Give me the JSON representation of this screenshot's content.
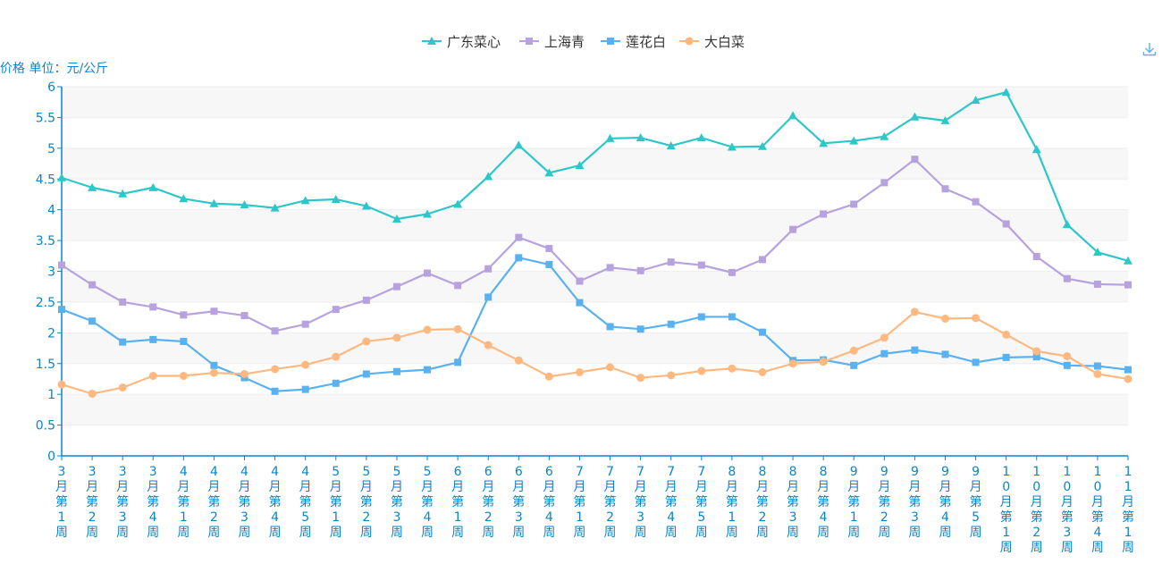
{
  "chart_data": {
    "type": "line",
    "ylabel": "价格 单位：元/公斤",
    "ylim": [
      0,
      6
    ],
    "yticks": [
      "0",
      "0.5",
      "1",
      "1.5",
      "2",
      "2.5",
      "3",
      "3.5",
      "4",
      "4.5",
      "5",
      "5.5",
      "6"
    ],
    "grid": true,
    "legend_position": "top-center",
    "categories": [
      "3月第1周",
      "3月第2周",
      "3月第3周",
      "3月第4周",
      "4月第1周",
      "4月第2周",
      "4月第3周",
      "4月第4周",
      "4月第5周",
      "5月第1周",
      "5月第2周",
      "5月第3周",
      "5月第4周",
      "6月第1周",
      "6月第2周",
      "6月第3周",
      "6月第4周",
      "7月第1周",
      "7月第2周",
      "7月第3周",
      "7月第4周",
      "7月第5周",
      "8月第1周",
      "8月第2周",
      "8月第3周",
      "8月第4周",
      "9月第1周",
      "9月第2周",
      "9月第3周",
      "9月第4周",
      "9月第5周",
      "10月第1周",
      "10月第2周",
      "10月第3周",
      "10月第4周",
      "11月第1周"
    ],
    "series": [
      {
        "name": "广东菜心",
        "color": "#2ec7c9",
        "marker": "triangle",
        "values": [
          4.52,
          4.36,
          4.26,
          4.36,
          4.18,
          4.1,
          4.08,
          4.03,
          4.15,
          4.17,
          4.06,
          3.85,
          3.93,
          4.09,
          4.54,
          5.05,
          4.6,
          4.72,
          5.16,
          5.17,
          5.04,
          5.17,
          5.02,
          5.03,
          5.53,
          5.08,
          5.12,
          5.19,
          5.51,
          5.45,
          5.78,
          5.91,
          4.98,
          3.76,
          3.31,
          3.17
        ]
      },
      {
        "name": "上海青",
        "color": "#b6a2de",
        "marker": "square",
        "values": [
          3.1,
          2.78,
          2.5,
          2.42,
          2.29,
          2.35,
          2.28,
          2.03,
          2.14,
          2.38,
          2.53,
          2.75,
          2.97,
          2.77,
          3.04,
          3.55,
          3.37,
          2.84,
          3.06,
          3.01,
          3.15,
          3.1,
          2.98,
          3.19,
          3.68,
          3.93,
          4.09,
          4.44,
          4.82,
          4.34,
          4.13,
          3.77,
          3.24,
          2.88,
          2.79,
          2.78
        ]
      },
      {
        "name": "莲花白",
        "color": "#5ab1ef",
        "marker": "square",
        "values": [
          2.38,
          2.19,
          1.85,
          1.89,
          1.86,
          1.47,
          1.27,
          1.05,
          1.08,
          1.18,
          1.33,
          1.37,
          1.4,
          1.52,
          2.58,
          3.22,
          3.11,
          2.49,
          2.1,
          2.06,
          2.14,
          2.26,
          2.26,
          2.01,
          1.55,
          1.56,
          1.47,
          1.66,
          1.72,
          1.65,
          1.52,
          1.6,
          1.61,
          1.47,
          1.46,
          1.4
        ]
      },
      {
        "name": "大白菜",
        "color": "#ffb980",
        "marker": "circle",
        "values": [
          1.16,
          1.01,
          1.11,
          1.3,
          1.3,
          1.35,
          1.33,
          1.41,
          1.48,
          1.61,
          1.86,
          1.92,
          2.05,
          2.06,
          1.8,
          1.55,
          1.29,
          1.36,
          1.44,
          1.27,
          1.31,
          1.38,
          1.42,
          1.36,
          1.5,
          1.53,
          1.71,
          1.92,
          2.34,
          2.23,
          2.24,
          1.97,
          1.7,
          1.62,
          1.33,
          1.25
        ]
      }
    ]
  },
  "toolbar": {
    "download_icon": "download-icon"
  }
}
